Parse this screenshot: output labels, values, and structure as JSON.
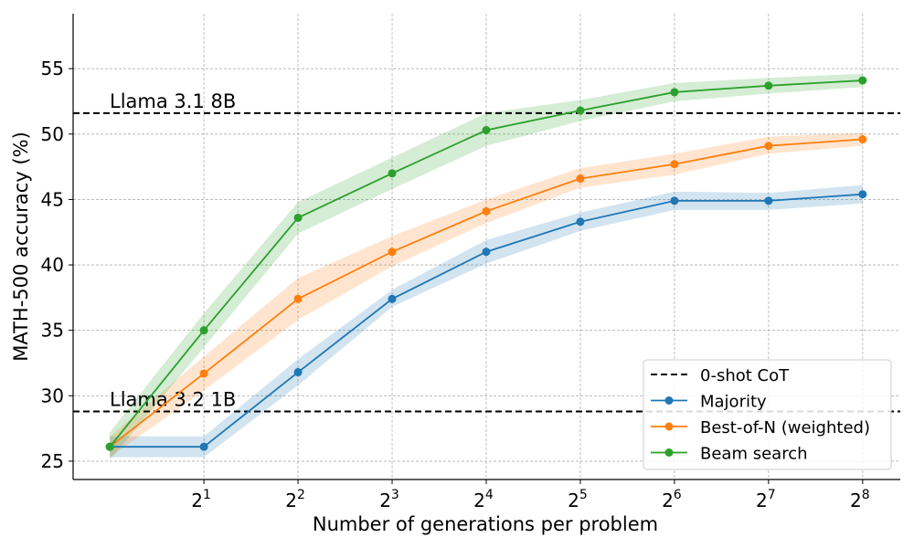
{
  "chart_data": {
    "type": "line",
    "title": "",
    "xlabel": "Number of generations per problem",
    "ylabel": "MATH-500 accuracy (%)",
    "x": [
      1,
      2,
      4,
      8,
      16,
      32,
      64,
      128,
      256
    ],
    "x_exponents": [
      0,
      1,
      2,
      3,
      4,
      5,
      6,
      7,
      8
    ],
    "x_ticks": [
      {
        "base": "2",
        "exp": "1",
        "value": 1
      },
      {
        "base": "2",
        "exp": "2",
        "value": 2
      },
      {
        "base": "2",
        "exp": "3",
        "value": 3
      },
      {
        "base": "2",
        "exp": "4",
        "value": 4
      },
      {
        "base": "2",
        "exp": "5",
        "value": 5
      },
      {
        "base": "2",
        "exp": "6",
        "value": 6
      },
      {
        "base": "2",
        "exp": "7",
        "value": 7
      },
      {
        "base": "2",
        "exp": "8",
        "value": 8
      }
    ],
    "xlim_exp": [
      -0.39,
      8.4
    ],
    "ylim": [
      23.6,
      59.2
    ],
    "y_ticks": [
      {
        "value": 25,
        "label": "25"
      },
      {
        "value": 30,
        "label": "30"
      },
      {
        "value": 35,
        "label": "35"
      },
      {
        "value": 40,
        "label": "40"
      },
      {
        "value": 45,
        "label": "45"
      },
      {
        "value": 50,
        "label": "50"
      },
      {
        "value": 55,
        "label": "55"
      }
    ],
    "grid": true,
    "legend_position": "bottom-right",
    "reference_lines": [
      {
        "name": "0-shot CoT",
        "label": "Llama 3.1 8B",
        "value": 51.6,
        "color": "#000000"
      },
      {
        "name": "0-shot CoT",
        "label": "Llama 3.2 1B",
        "value": 28.8,
        "color": "#000000"
      }
    ],
    "series": [
      {
        "name": "Majority",
        "color": "#1f77b4",
        "values": [
          26.1,
          26.1,
          31.8,
          37.4,
          41.0,
          43.3,
          44.9,
          44.9,
          45.4
        ],
        "lower": [
          25.3,
          25.3,
          30.8,
          36.8,
          40.1,
          42.6,
          44.2,
          44.2,
          44.7
        ],
        "upper": [
          26.9,
          26.9,
          32.8,
          38.1,
          41.9,
          44.0,
          45.6,
          45.5,
          46.1
        ]
      },
      {
        "name": "Best-of-N (weighted)",
        "color": "#ff7f0e",
        "values": [
          26.1,
          31.7,
          37.4,
          41.0,
          44.1,
          46.6,
          47.7,
          49.1,
          49.6
        ],
        "lower": [
          25.3,
          30.4,
          35.8,
          39.9,
          43.2,
          45.9,
          46.9,
          48.5,
          49.1
        ],
        "upper": [
          26.9,
          33.0,
          39.0,
          42.2,
          45.0,
          47.4,
          48.5,
          49.8,
          50.1
        ]
      },
      {
        "name": "Beam search",
        "color": "#2ca02c",
        "values": [
          26.1,
          35.0,
          43.6,
          47.0,
          50.3,
          51.8,
          53.2,
          53.7,
          54.1
        ],
        "lower": [
          25.1,
          33.7,
          42.4,
          45.8,
          49.1,
          51.0,
          52.5,
          53.1,
          53.6
        ],
        "upper": [
          27.2,
          36.3,
          44.8,
          48.2,
          51.6,
          52.6,
          53.9,
          54.3,
          54.6
        ]
      }
    ],
    "legend": [
      {
        "label": "0-shot CoT",
        "kind": "dashed",
        "color": "#000000"
      },
      {
        "label": "Majority",
        "kind": "line-marker",
        "color": "#1f77b4"
      },
      {
        "label": "Best-of-N (weighted)",
        "kind": "line-marker",
        "color": "#ff7f0e"
      },
      {
        "label": "Beam search",
        "kind": "line-marker",
        "color": "#2ca02c"
      }
    ]
  }
}
